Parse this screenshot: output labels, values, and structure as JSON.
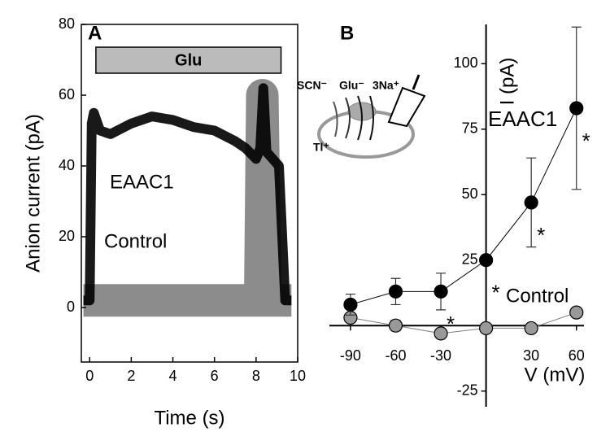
{
  "chart_data": [
    {
      "type": "line",
      "panel_label": "A",
      "xlabel": "Time (s)",
      "ylabel": "Anion current (pA)",
      "xlim": [
        -0.4,
        10
      ],
      "xticks": [
        0,
        2,
        4,
        6,
        8,
        10
      ],
      "ylim": [
        -15.4,
        80
      ],
      "yticks": [
        0,
        20,
        40,
        60,
        80
      ],
      "stimulus": {
        "label": "Glu",
        "start": 0.3,
        "end": 9.2
      },
      "series": [
        {
          "name": "Control",
          "color": "#808080",
          "x": [
            -0.3,
            0,
            1,
            2,
            3,
            4,
            5,
            6,
            7,
            8,
            8.2,
            8.3,
            8.45,
            8.6,
            9,
            9.7
          ],
          "values": [
            2,
            2,
            2,
            2,
            2,
            2,
            2,
            2,
            2,
            2,
            2,
            60,
            2,
            2,
            2,
            2
          ]
        },
        {
          "name": "EAAC1",
          "color": "#000000",
          "x": [
            -0.3,
            0,
            0.1,
            0.2,
            0.5,
            1,
            2,
            3,
            4,
            5,
            6,
            7,
            7.5,
            8,
            8.2,
            8.35,
            8.5,
            8.8,
            9.1,
            9.4,
            9.7
          ],
          "values": [
            2,
            2,
            52,
            55,
            50,
            49,
            52,
            54,
            53,
            51,
            50,
            47,
            45,
            42,
            45,
            62,
            44,
            42,
            40,
            2,
            2
          ]
        }
      ]
    },
    {
      "type": "scatter",
      "panel_label": "B",
      "xlabel": "V (mV)",
      "ylabel": "I (pA)",
      "xlim": [
        -104,
        65
      ],
      "xticks": [
        -90,
        -60,
        -30,
        30,
        60
      ],
      "ylim": [
        -31,
        115
      ],
      "yticks": [
        -25,
        25,
        50,
        75,
        100
      ],
      "inset_labels": [
        "SCN⁻",
        "Glu⁻",
        "3Na⁺",
        "Tl⁺"
      ],
      "significance_markers": [
        "*",
        "*",
        "*",
        "*"
      ],
      "x": [
        -90,
        -60,
        -30,
        0,
        30,
        60
      ],
      "series": [
        {
          "name": "EAAC1",
          "color": "#000000",
          "values": [
            8,
            13,
            13,
            25,
            47,
            83
          ],
          "errors": [
            4,
            5,
            7,
            0,
            17,
            31
          ]
        },
        {
          "name": "Control",
          "color": "#808080",
          "values": [
            3,
            0,
            -3,
            -1,
            -1,
            5
          ],
          "errors": [
            1,
            2,
            1,
            0,
            1,
            1
          ]
        }
      ]
    }
  ]
}
